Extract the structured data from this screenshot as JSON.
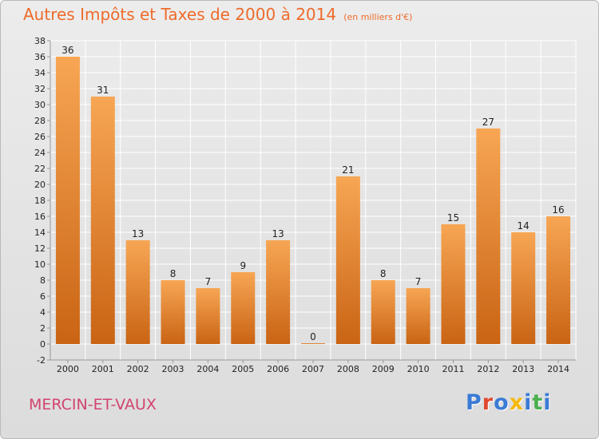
{
  "header": {
    "title": "Autres Impôts et Taxes de 2000 à 2014",
    "subtitle": "(en milliers d'€)"
  },
  "footer": {
    "place": "MERCIN-ET-VAUX",
    "logo": {
      "text": "Proxiti",
      "letter_colors": [
        "#3a7bd5",
        "#e04a2f",
        "#3a7bd5",
        "#f5b80d",
        "#3a7bd5",
        "#4caf50",
        "#3a7bd5"
      ]
    }
  },
  "colors": {
    "bar_light": "#f7a654",
    "bar_dark": "#c96414",
    "grid": "#ffffff",
    "axis": "#999999",
    "title": "#ee6b2a",
    "place": "#d2436e"
  },
  "chart_data": {
    "type": "bar",
    "title": "Autres Impôts et Taxes de 2000 à 2014",
    "subtitle": "(en milliers d'€)",
    "xlabel": "",
    "ylabel": "",
    "categories": [
      "2000",
      "2001",
      "2002",
      "2003",
      "2004",
      "2005",
      "2006",
      "2007",
      "2008",
      "2009",
      "2010",
      "2011",
      "2012",
      "2013",
      "2014"
    ],
    "values": [
      36,
      31,
      13,
      8,
      7,
      9,
      13,
      0,
      21,
      8,
      7,
      15,
      27,
      14,
      16
    ],
    "ylim": [
      -2,
      38
    ],
    "yticks": [
      -2,
      0,
      2,
      4,
      6,
      8,
      10,
      12,
      14,
      16,
      18,
      20,
      22,
      24,
      26,
      28,
      30,
      32,
      34,
      36,
      38
    ],
    "grid": true,
    "legend": "none"
  }
}
